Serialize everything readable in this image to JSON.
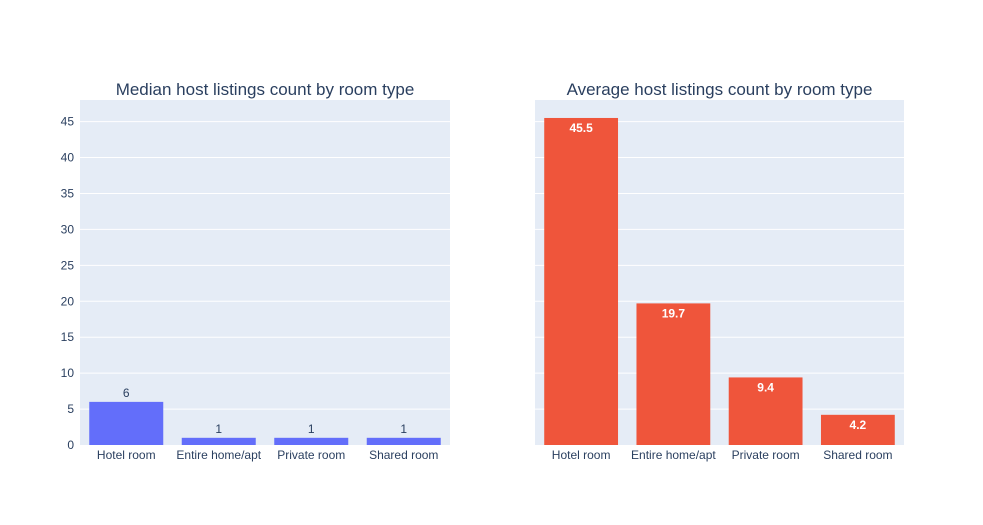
{
  "chart_data": [
    {
      "type": "bar",
      "title": "Median host listings count by room type",
      "categories": [
        "Hotel room",
        "Entire home/apt",
        "Private room",
        "Shared room"
      ],
      "values": [
        6,
        1,
        1,
        1
      ],
      "data_labels": [
        "6",
        "1",
        "1",
        "1"
      ],
      "label_position": "outside",
      "color": "#636efa",
      "ylim": [
        0,
        48
      ],
      "yticks": [
        0,
        5,
        10,
        15,
        20,
        25,
        30,
        35,
        40,
        45
      ],
      "show_y_ticks": true,
      "grid": true,
      "xlabel": "",
      "ylabel": ""
    },
    {
      "type": "bar",
      "title": "Average host listings count by room type",
      "categories": [
        "Hotel room",
        "Entire home/apt",
        "Private room",
        "Shared room"
      ],
      "values": [
        45.5,
        19.7,
        9.4,
        4.2
      ],
      "data_labels": [
        "45.5",
        "19.7",
        "9.4",
        "4.2"
      ],
      "label_position": "inside",
      "color": "#ef553b",
      "ylim": [
        0,
        48
      ],
      "yticks": [
        0,
        5,
        10,
        15,
        20,
        25,
        30,
        35,
        40,
        45
      ],
      "show_y_ticks": false,
      "grid": true,
      "xlabel": "",
      "ylabel": ""
    }
  ],
  "colors": {
    "plot_background": "#e5ecf6",
    "gridline": "#ffffff",
    "text": "#2a3f5f"
  }
}
